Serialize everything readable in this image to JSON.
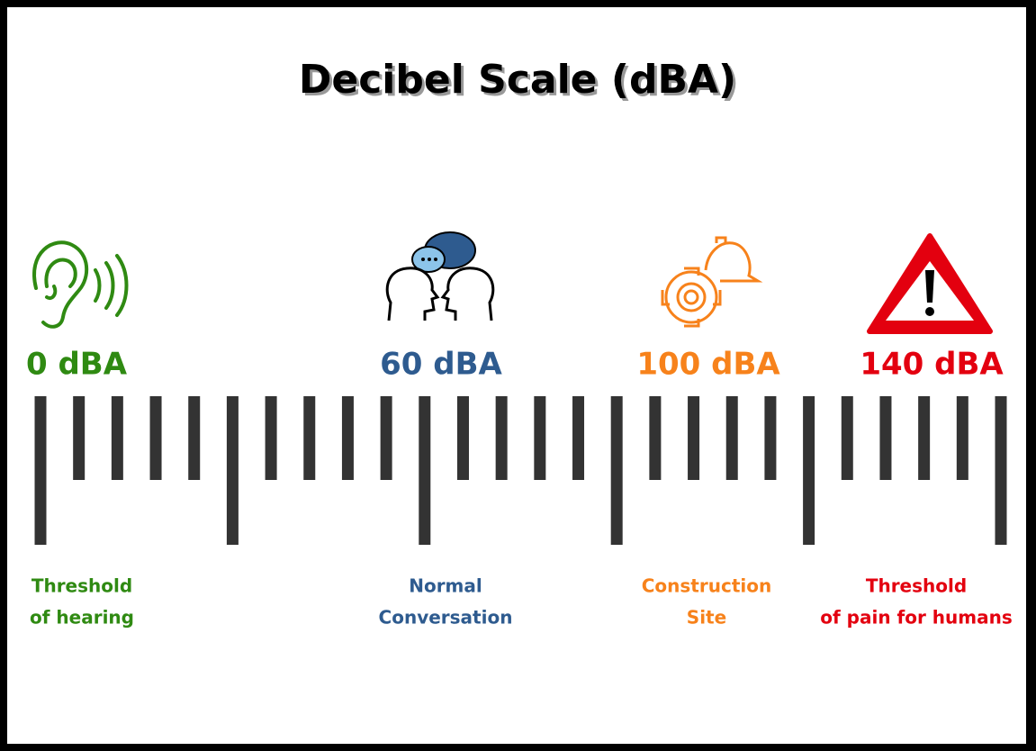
{
  "title": "Decibel Scale (dBA)",
  "markers": [
    {
      "label": "0 dBA",
      "caption": [
        "Threshold",
        "of hearing"
      ],
      "color": "#2f8a12"
    },
    {
      "label": "60 dBA",
      "caption": [
        "Normal",
        "Conversation"
      ],
      "color": "#2e5b8f"
    },
    {
      "label": "100 dBA",
      "caption": [
        "Construction",
        "Site"
      ],
      "color": "#f7821b"
    },
    {
      "label": "140 dBA",
      "caption": [
        "Threshold",
        "of pain for humans"
      ],
      "color": "#e3000f"
    }
  ]
}
